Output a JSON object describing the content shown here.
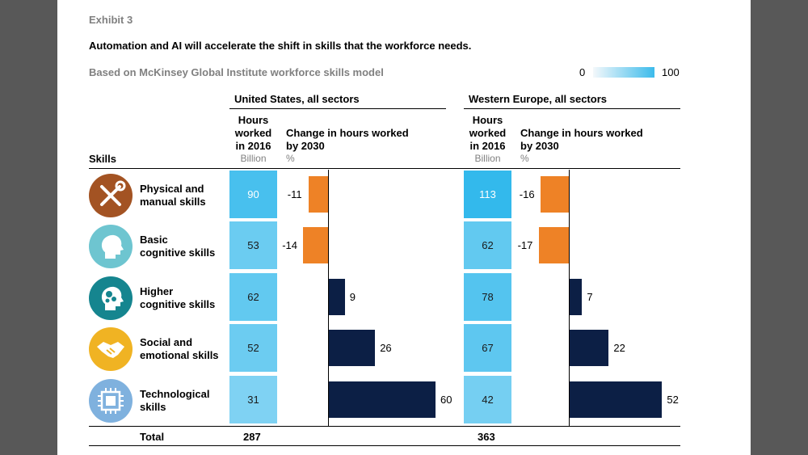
{
  "exhibit": "Exhibit 3",
  "title": "Automation and AI will accelerate the shift in skills that the workforce needs.",
  "subtitle": "Based on McKinsey Global Institute workforce skills model",
  "legend": {
    "min": "0",
    "max": "100"
  },
  "headers": {
    "skills": "Skills",
    "hours_l1": "Hours",
    "hours_l2": "worked",
    "hours_l3": "in 2016",
    "hours_unit": "Billion",
    "change_l1": "Change in hours worked",
    "change_l2": "by 2030",
    "change_unit": "%",
    "total": "Total"
  },
  "colors": {
    "negative": "#ee8226",
    "positive": "#0c1f45",
    "dark_cell": "#33b9ec",
    "light_cell": "#88d3f2"
  },
  "skills": [
    {
      "label_l1": "Physical and",
      "label_l2": "manual skills",
      "icon": "tools-icon",
      "icon_color": "#a35323"
    },
    {
      "label_l1": "Basic",
      "label_l2": "cognitive skills",
      "icon": "head-icon",
      "icon_color": "#6ec5d0"
    },
    {
      "label_l1": "Higher",
      "label_l2": "cognitive skills",
      "icon": "head-gears-icon",
      "icon_color": "#15858f"
    },
    {
      "label_l1": "Social and",
      "label_l2": "emotional skills",
      "icon": "handshake-icon",
      "icon_color": "#f0b323"
    },
    {
      "label_l1": "Technological",
      "label_l2": "skills",
      "icon": "chip-icon",
      "icon_color": "#7fb1de"
    }
  ],
  "chart_data": {
    "type": "bar",
    "categories": [
      "Physical and manual skills",
      "Basic cognitive skills",
      "Higher cognitive skills",
      "Social and emotional skills",
      "Technological skills"
    ],
    "regions": [
      {
        "name": "United States, all sectors",
        "hours_2016": [
          90,
          53,
          62,
          52,
          31
        ],
        "change_2030": [
          -11,
          -14,
          9,
          26,
          60
        ],
        "total": "287"
      },
      {
        "name": "Western Europe, all sectors",
        "hours_2016": [
          113,
          62,
          78,
          67,
          42
        ],
        "change_2030": [
          -16,
          -17,
          7,
          22,
          52
        ],
        "total": "363"
      }
    ]
  }
}
